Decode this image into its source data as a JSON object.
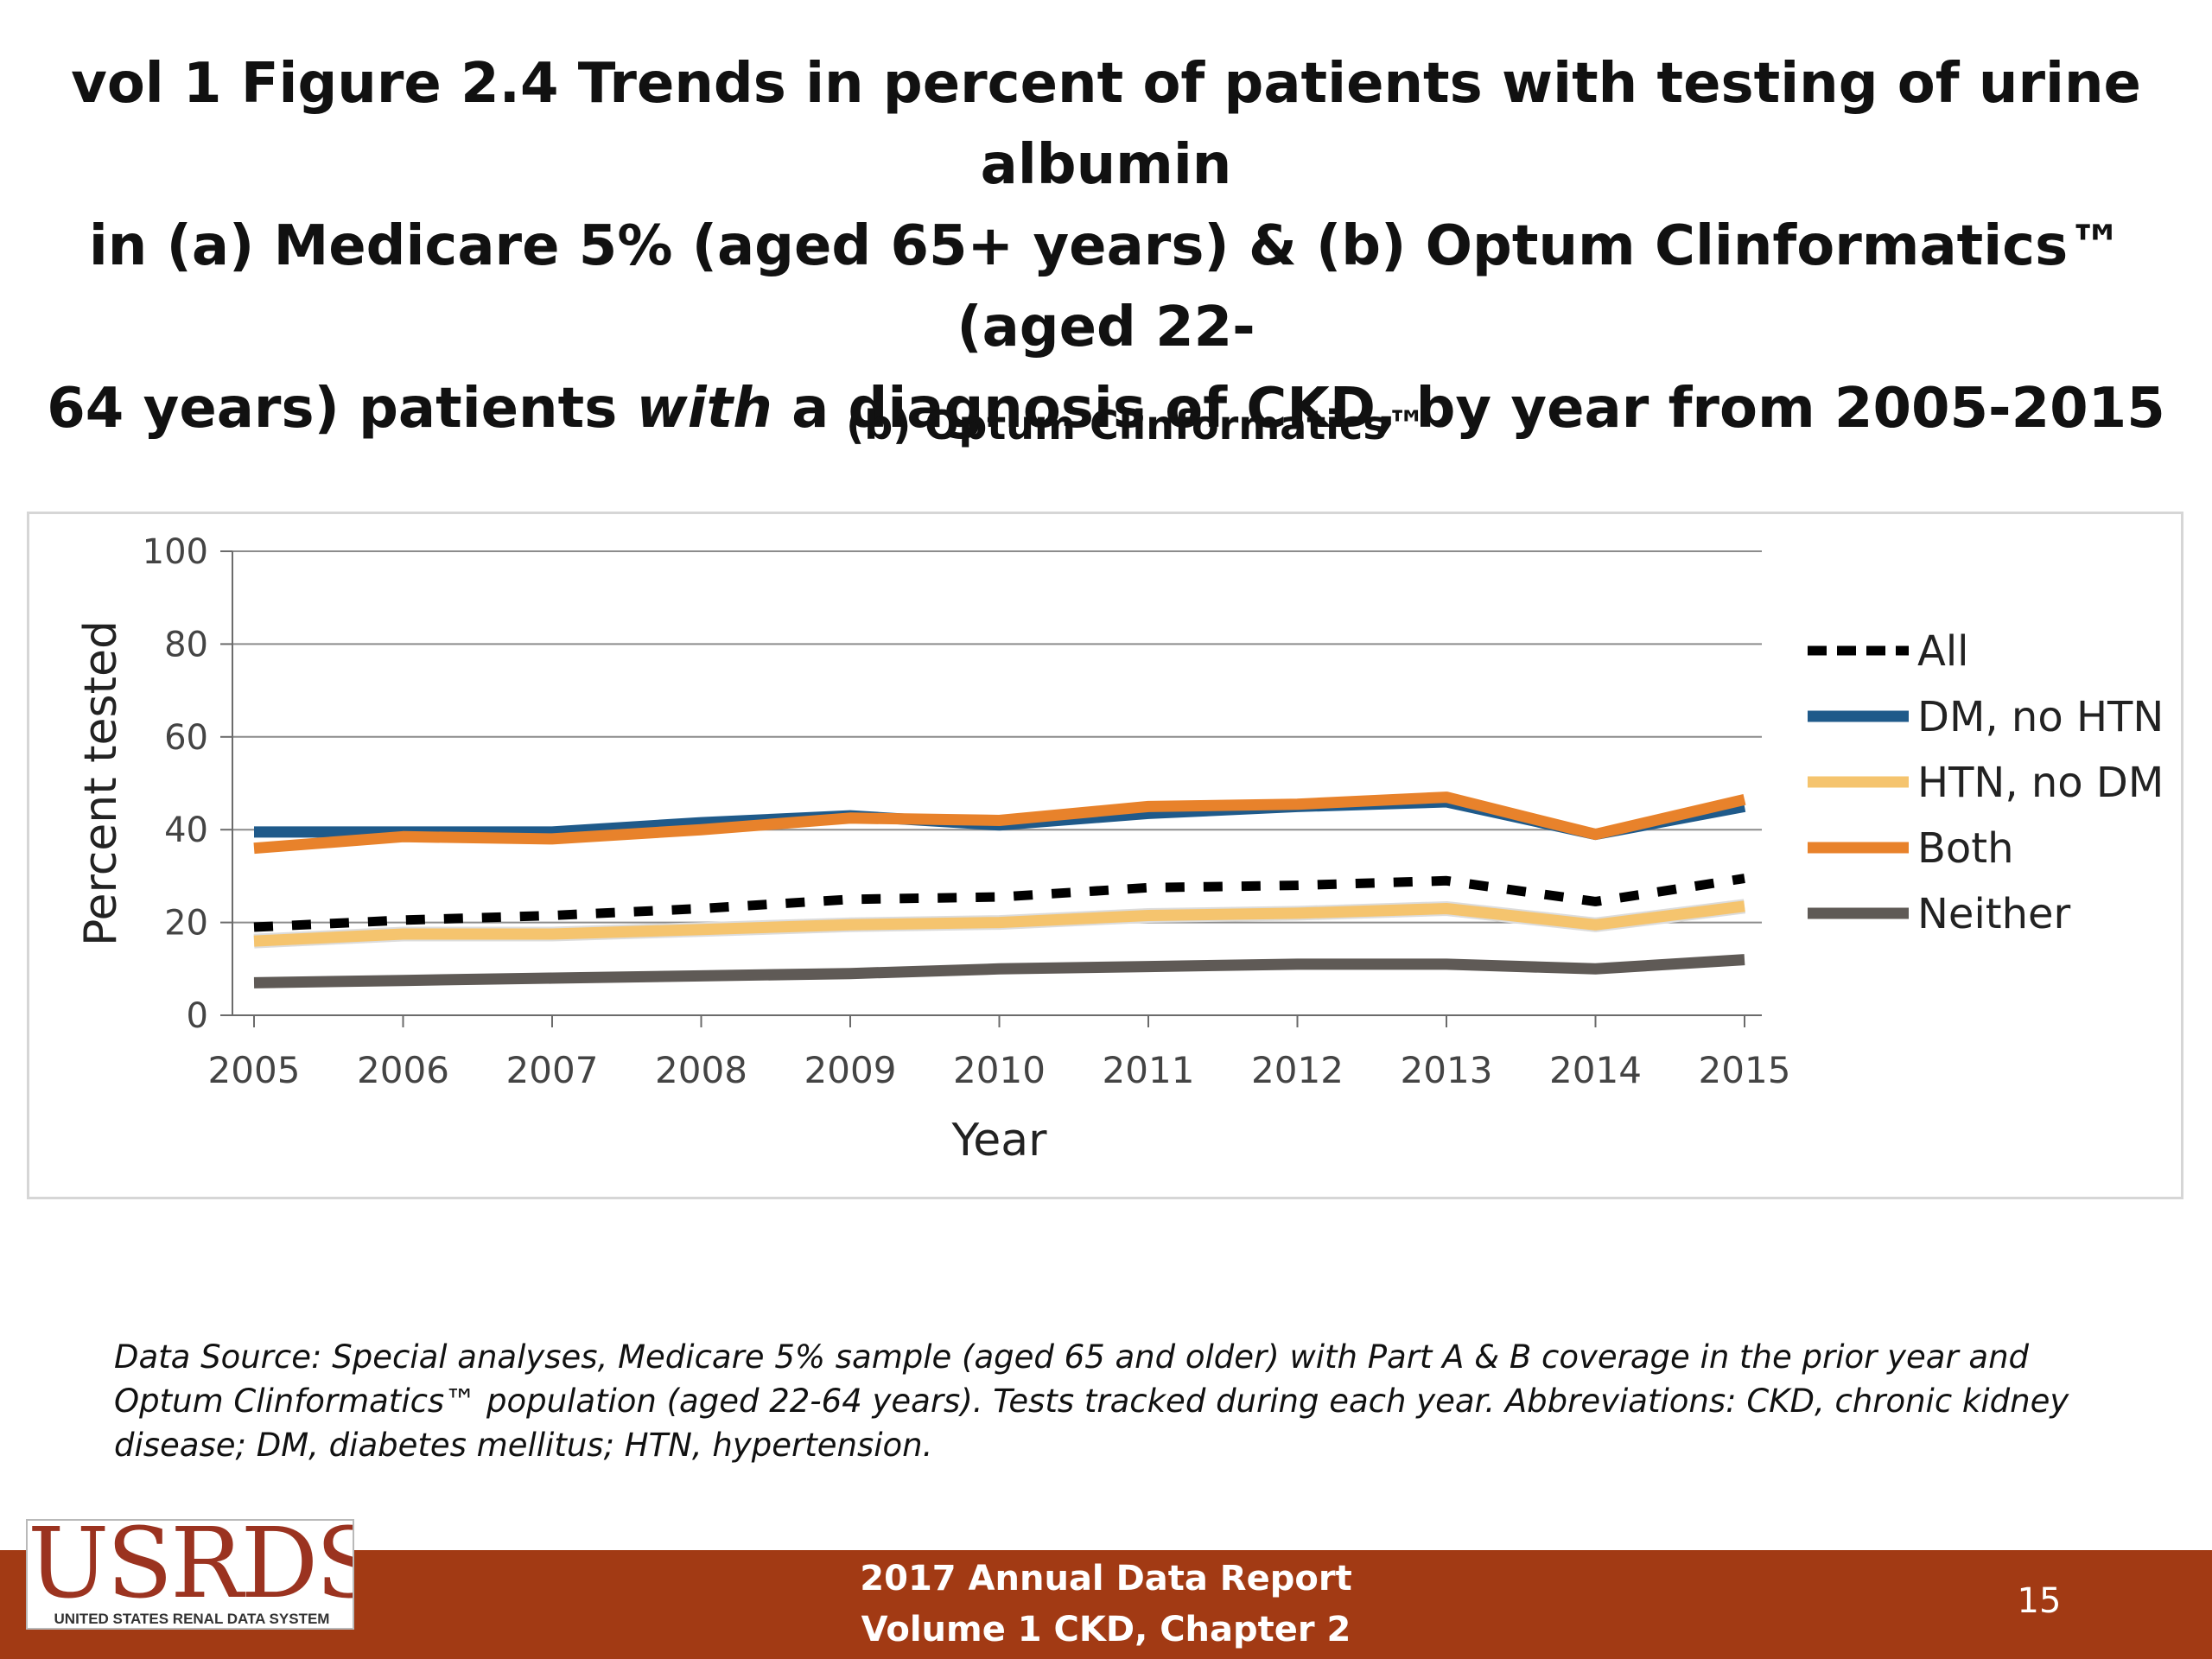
{
  "slide": {
    "title_lines": [
      "vol 1 Figure 2.4 Trends in percent of patients with testing of urine albumin",
      "in (a) Medicare 5% (aged 65+ years) & (b) Optum Clinformatics™ (aged 22-",
      "64 years) patients "
    ],
    "title_emphasis": "with",
    "title_tail": " a diagnosis of CKD, by year from 2005-2015",
    "source_note": "Data Source: Special analyses, Medicare 5% sample (aged 65 and older) with Part A & B coverage in the prior year and Optum Clinformatics™ population (aged 22-64 years). Tests tracked during each year. Abbreviations: CKD, chronic kidney disease; DM, diabetes mellitus; HTN, hypertension."
  },
  "footer": {
    "line1": "2017 Annual Data Report",
    "line2": "Volume 1 CKD, Chapter 2",
    "page_number": "15",
    "logo_text": "USRDS",
    "logo_subtext": "UNITED STATES RENAL DATA SYSTEM",
    "band_color": "#a23a14"
  },
  "chart_data": {
    "type": "line",
    "title": "(b) Optum Clinformatics™",
    "xlabel": "Year",
    "ylabel": "Percent tested",
    "x": [
      2005,
      2006,
      2007,
      2008,
      2009,
      2010,
      2011,
      2012,
      2013,
      2014,
      2015
    ],
    "ylim": [
      0,
      100
    ],
    "yticks": [
      0,
      20,
      40,
      60,
      80,
      100
    ],
    "grid": true,
    "legend_position": "right",
    "series": [
      {
        "name": "All",
        "color": "#000000",
        "dash": true,
        "values": [
          19,
          20.5,
          21.5,
          23,
          25,
          25.5,
          27.5,
          28,
          29,
          24.5,
          29.5
        ]
      },
      {
        "name": "DM, no HTN",
        "color": "#1f5a8a",
        "dash": false,
        "values": [
          39.5,
          39.5,
          39.5,
          41.5,
          43,
          41,
          43.5,
          45,
          46,
          39,
          45
        ]
      },
      {
        "name": "HTN, no DM",
        "color": "#f5c46e",
        "dash": false,
        "values": [
          16,
          17.5,
          17.5,
          18.5,
          19.5,
          20,
          21.5,
          22,
          23,
          19.5,
          23.5
        ]
      },
      {
        "name": "Both",
        "color": "#e8822b",
        "dash": false,
        "values": [
          36,
          38.5,
          38,
          40,
          42.5,
          42,
          45,
          45.5,
          47,
          39,
          46.5
        ]
      },
      {
        "name": "Neither",
        "color": "#5f5a56",
        "dash": false,
        "values": [
          7,
          7.5,
          8,
          8.5,
          9,
          10,
          10.5,
          11,
          11,
          10,
          12
        ]
      }
    ]
  }
}
